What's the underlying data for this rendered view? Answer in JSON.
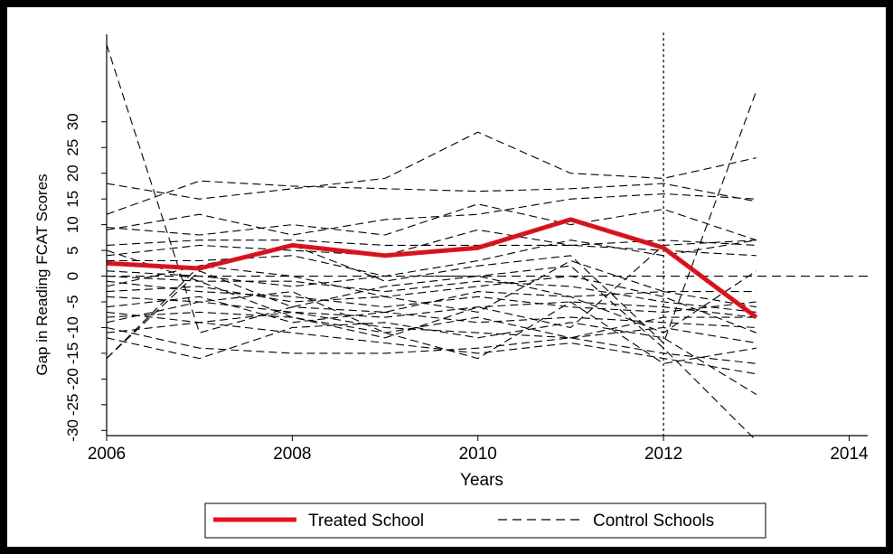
{
  "chart_data": {
    "type": "line",
    "xlabel": "Years",
    "ylabel": "Gap in Reading FCAT Scores",
    "xlim": [
      2006,
      2014.2
    ],
    "ylim": [
      -31,
      47
    ],
    "x_ticks": [
      2006,
      2008,
      2010,
      2012,
      2014
    ],
    "x_tick_labels": [
      "2006",
      "2008",
      "2010",
      "2012",
      "2014"
    ],
    "y_ticks": [
      -30,
      -25,
      -20,
      -15,
      -10,
      -5,
      0,
      5,
      10,
      15,
      20,
      25,
      30
    ],
    "y_tick_labels": [
      "-30",
      "-25",
      "-20",
      "-15",
      "-10",
      "-5",
      "0",
      "5",
      "10",
      "15",
      "20",
      "25",
      "30"
    ],
    "reference_lines": {
      "vertical_x": 2012,
      "horizontal_y": 0
    },
    "grid": false,
    "legend": {
      "placement": "bottom",
      "entries": [
        {
          "label": "Treated School",
          "style": "solid-red"
        },
        {
          "label": "Control Schools",
          "style": "dashed-black"
        }
      ]
    },
    "colors": {
      "treated": "#e8101c",
      "treated_inner": "#8a2a24",
      "control": "#000000"
    },
    "x": [
      2006,
      2007,
      2008,
      2009,
      2010,
      2011,
      2012,
      2013
    ],
    "series": [
      {
        "name": "Treated School",
        "role": "treated",
        "values": [
          2.5,
          1.5,
          6,
          4,
          5.5,
          11,
          5.5,
          -8
        ]
      },
      {
        "role": "control",
        "values": [
          45,
          -11,
          -6,
          -7,
          -3,
          -4,
          -3,
          -6
        ]
      },
      {
        "role": "control",
        "values": [
          -16,
          2,
          6,
          -1,
          2,
          4,
          -13,
          36
        ]
      },
      {
        "role": "control",
        "values": [
          18,
          15,
          17,
          19,
          28,
          20,
          19,
          23
        ]
      },
      {
        "role": "control",
        "values": [
          12,
          18.5,
          17.5,
          17,
          16.5,
          17,
          18,
          14.5
        ]
      },
      {
        "role": "control",
        "values": [
          9,
          12,
          8,
          11,
          12,
          15,
          16,
          15
        ]
      },
      {
        "role": "control",
        "values": [
          9.5,
          8,
          10,
          8,
          14,
          10,
          13,
          7
        ]
      },
      {
        "role": "control",
        "values": [
          6,
          7,
          7,
          6,
          6,
          6,
          5,
          4
        ]
      },
      {
        "role": "control",
        "values": [
          4,
          6,
          5,
          4,
          9,
          6,
          7,
          6
        ]
      },
      {
        "role": "control",
        "values": [
          3,
          3,
          4,
          0,
          3,
          7,
          4,
          7
        ]
      },
      {
        "role": "control",
        "values": [
          1,
          0,
          -2,
          0,
          0,
          2,
          -14,
          -32
        ]
      },
      {
        "role": "control",
        "values": [
          0,
          -1,
          -1,
          -3,
          -1,
          -2,
          -5,
          -7
        ]
      },
      {
        "role": "control",
        "values": [
          -1,
          -3,
          -4,
          -6,
          -4,
          -6,
          -7,
          -5
        ]
      },
      {
        "role": "control",
        "values": [
          -3,
          -2,
          -5,
          -4,
          -7,
          3,
          -3,
          -3
        ]
      },
      {
        "role": "control",
        "values": [
          -4,
          -5,
          -7,
          -8,
          -6,
          -5,
          -6,
          -8
        ]
      },
      {
        "role": "control",
        "values": [
          -6,
          -4,
          -9,
          -7,
          -9,
          -8,
          -9,
          -10
        ]
      },
      {
        "role": "control",
        "values": [
          -8,
          -7,
          -8,
          -11,
          -8,
          -12,
          -10,
          -13
        ]
      },
      {
        "role": "control",
        "values": [
          -10,
          -14,
          -15,
          -15,
          -14,
          -12,
          -15,
          -17
        ]
      },
      {
        "role": "control",
        "values": [
          -11,
          -9,
          -11,
          -13,
          -15,
          -13,
          -16,
          -19
        ]
      },
      {
        "role": "control",
        "values": [
          -12,
          -16,
          -10,
          -9,
          -12,
          -9,
          -12,
          -23
        ]
      },
      {
        "role": "control",
        "values": [
          -16,
          1,
          -6,
          -2,
          0,
          -4,
          -11,
          1
        ]
      },
      {
        "role": "control",
        "values": [
          -9,
          -5,
          -3,
          -11,
          -16,
          -5,
          -17,
          -14
        ]
      },
      {
        "role": "control",
        "values": [
          5,
          -1,
          -8,
          -12,
          -6,
          -10,
          6,
          7
        ]
      },
      {
        "role": "control",
        "values": [
          -7,
          -9,
          -7,
          -10,
          -11,
          -12,
          -8,
          -8
        ]
      },
      {
        "role": "control",
        "values": [
          -2,
          2,
          0,
          -4,
          -2,
          0,
          -4,
          -11
        ]
      }
    ]
  }
}
